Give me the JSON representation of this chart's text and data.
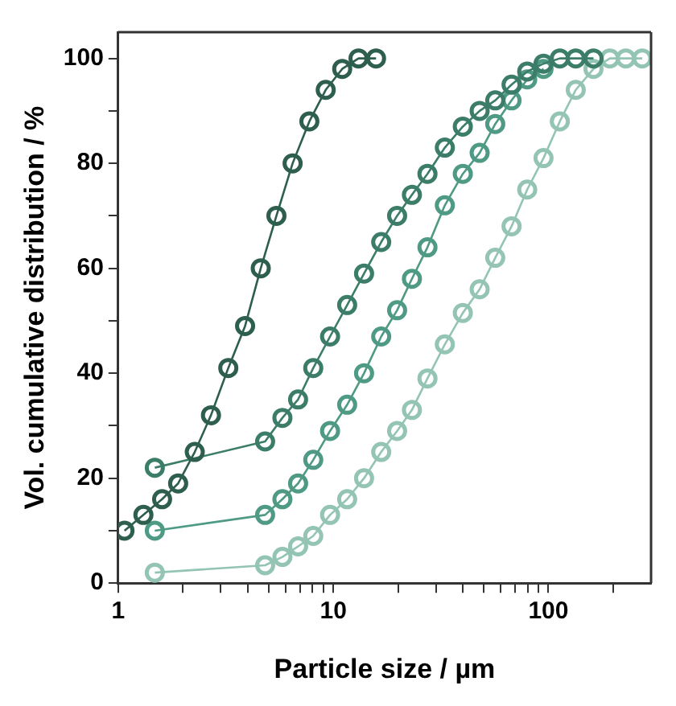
{
  "chart_data": {
    "type": "line",
    "xlabel": "Particle size / µm",
    "ylabel": "Vol. cumulative distribution / %",
    "log": "x",
    "xlim": [
      1,
      300
    ],
    "ylim": [
      0,
      105
    ],
    "xticks": [
      1,
      {
        "value": 2,
        "label": null
      },
      {
        "value": 3,
        "label": null
      },
      {
        "value": 4,
        "label": null
      },
      {
        "value": 5,
        "label": null
      },
      {
        "value": 6,
        "label": null
      },
      {
        "value": 7,
        "label": null
      },
      {
        "value": 8,
        "label": null
      },
      {
        "value": 9,
        "label": null
      },
      10,
      {
        "value": 20,
        "label": null
      },
      {
        "value": 30,
        "label": null
      },
      {
        "value": 40,
        "label": null
      },
      {
        "value": 50,
        "label": null
      },
      {
        "value": 60,
        "label": null
      },
      {
        "value": 70,
        "label": null
      },
      {
        "value": 80,
        "label": null
      },
      {
        "value": 90,
        "label": null
      },
      100,
      {
        "value": 200,
        "label": null
      }
    ],
    "yticks": [
      0,
      {
        "value": 10,
        "label": null
      },
      20,
      {
        "value": 30,
        "label": null
      },
      40,
      {
        "value": 50,
        "label": null
      },
      60,
      {
        "value": 70,
        "label": null
      },
      80,
      {
        "value": 90,
        "label": null
      },
      100
    ],
    "marker": "circle",
    "line_style": "solid",
    "grid": false,
    "legend": false,
    "series": [
      {
        "color": "#2e5e4e",
        "x": [
          1.07,
          1.31,
          1.6,
          1.9,
          2.27,
          2.7,
          3.25,
          3.89,
          4.6,
          5.44,
          6.47,
          7.74,
          9.22,
          11,
          13.1,
          15.8
        ],
        "values": [
          10,
          13,
          16,
          19,
          25,
          32,
          41,
          49,
          60,
          70,
          80,
          88,
          94,
          98,
          100,
          100
        ]
      },
      {
        "color": "#3b7d68",
        "x": [
          1.48,
          4.82,
          5.8,
          6.86,
          8.07,
          9.66,
          11.6,
          13.9,
          16.7,
          19.8,
          23.2,
          27.4,
          33,
          40,
          47.9,
          56.6,
          67.4,
          79.7,
          94.9,
          113,
          134,
          162
        ],
        "values": [
          22,
          27,
          31.5,
          35,
          41,
          47,
          53,
          59,
          65,
          70,
          74,
          78,
          83,
          87,
          90,
          92,
          95,
          97.5,
          99,
          100,
          100,
          100
        ]
      },
      {
        "color": "#4f9a84",
        "x": [
          1.48,
          4.82,
          5.8,
          6.86,
          8.07,
          9.66,
          11.6,
          13.9,
          16.7,
          19.8,
          23.2,
          27.4,
          33,
          40,
          47.9,
          56.6,
          67.4,
          79.7,
          94.9
        ],
        "values": [
          10,
          13,
          16,
          19,
          23.5,
          29,
          34,
          40,
          47,
          52,
          58,
          64,
          72,
          78,
          82,
          87.5,
          92,
          96,
          98
        ]
      },
      {
        "color": "#93c4b4",
        "x": [
          1.48,
          4.82,
          5.8,
          6.86,
          8.07,
          9.66,
          11.6,
          13.9,
          16.7,
          19.8,
          23.2,
          27.4,
          33,
          40,
          47.9,
          56.6,
          67.4,
          79.7,
          94.9,
          113,
          134,
          162,
          193,
          229,
          273
        ],
        "values": [
          2,
          3.4,
          5,
          7,
          9,
          13,
          16,
          20,
          25,
          29,
          33,
          39,
          45.5,
          51.5,
          56,
          62,
          68,
          75,
          81,
          88,
          94,
          98,
          100,
          100,
          100
        ]
      }
    ]
  }
}
